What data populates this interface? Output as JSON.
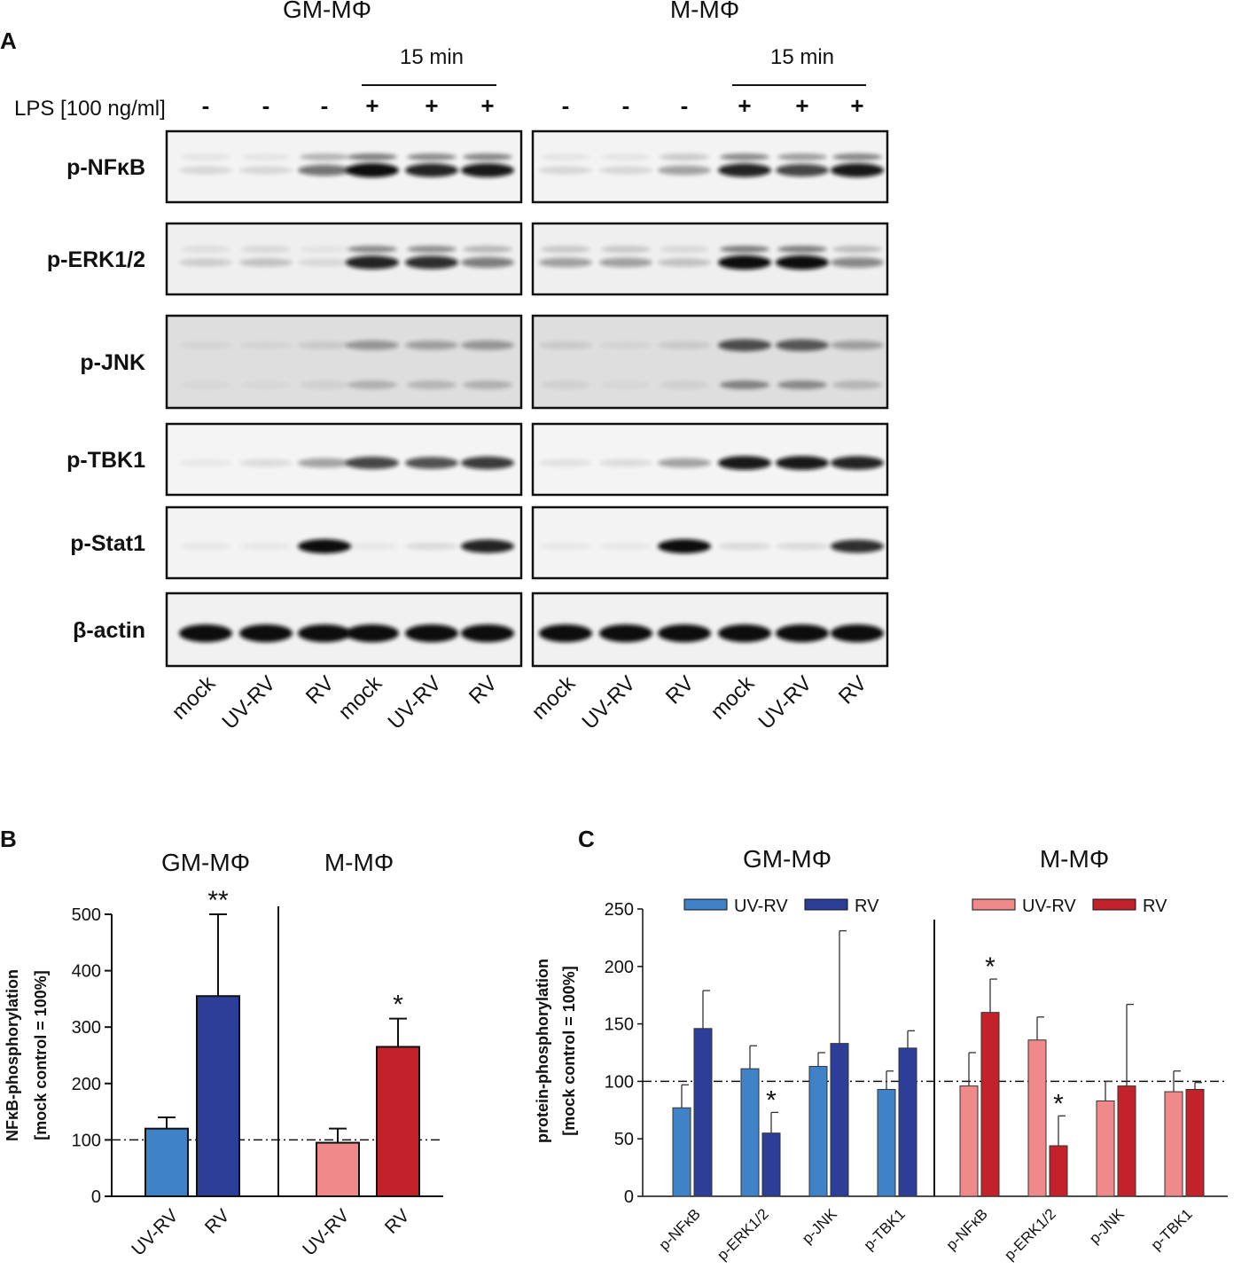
{
  "panel_a": {
    "letter": "A",
    "group_titles": [
      "GM-MΦ",
      "M-MΦ"
    ],
    "time_label": "15 min",
    "lps_label": "LPS [100 ng/ml]",
    "lps_signs": [
      "-",
      "-",
      "-",
      "+",
      "+",
      "+"
    ],
    "rows": [
      "p-NFκB",
      "p-ERK1/2",
      "p-JNK",
      "p-TBK1",
      "p-Stat1",
      "β-actin"
    ],
    "lanes": [
      "mock",
      "UV-RV",
      "RV",
      "mock",
      "UV-RV",
      "RV"
    ]
  },
  "panel_b": {
    "letter": "B",
    "group_titles": [
      "GM-MΦ",
      "M-MΦ"
    ],
    "ylabel_line1": "NFκB-phosphorylation",
    "ylabel_line2": "[mock control = 100%]",
    "yticks": [
      "500",
      "400",
      "300",
      "200",
      "100",
      "0"
    ],
    "xlabels": [
      "UV-RV",
      "RV",
      "UV-RV",
      "RV"
    ],
    "sig": [
      "",
      "**",
      "",
      "*"
    ]
  },
  "panel_c": {
    "letter": "C",
    "group_titles": [
      "GM-MΦ",
      "M-MΦ"
    ],
    "ylabel_line1": "protein-phosphorylation",
    "ylabel_line2": "[mock control = 100%]",
    "yticks": [
      "250",
      "200",
      "150",
      "100",
      "50",
      "0"
    ],
    "legend_gm": [
      "UV-RV",
      "RV"
    ],
    "legend_m": [
      "UV-RV",
      "RV"
    ],
    "xlabels": [
      "p-NFκB",
      "p-ERK1/2",
      "p-JNK",
      "p-TBK1",
      "p-NFκB",
      "p-ERK1/2",
      "p-JNK",
      "p-TBK1"
    ]
  },
  "colors": {
    "gm_uvrv": "#3f82c8",
    "gm_rv": "#2c3e98",
    "m_uvrv": "#f08a8a",
    "m_rv": "#c4222a"
  },
  "chart_data": [
    {
      "type": "bar",
      "panel": "B",
      "categories": [
        "UV-RV",
        "RV",
        "UV-RV",
        "RV"
      ],
      "groups": [
        "GM-MΦ",
        "GM-MΦ",
        "M-MΦ",
        "M-MΦ"
      ],
      "values": [
        120,
        355,
        95,
        265
      ],
      "errors": [
        20,
        145,
        25,
        50
      ],
      "significance": [
        "",
        "**",
        "",
        "*"
      ],
      "reference_line": 100,
      "ylim": [
        0,
        500
      ],
      "ylabel": "NFκB-phosphorylation [mock control = 100%]"
    },
    {
      "type": "bar",
      "panel": "C",
      "categories": [
        "p-NFκB",
        "p-ERK1/2",
        "p-JNK",
        "p-TBK1"
      ],
      "reference_line": 100,
      "ylim": [
        0,
        250
      ],
      "ylabel": "protein-phosphorylation [mock control = 100%]",
      "series": [
        {
          "group": "GM-MΦ",
          "name": "UV-RV",
          "values": [
            77,
            111,
            113,
            93
          ],
          "errors": [
            20,
            20,
            12,
            16
          ],
          "significance": [
            "",
            "",
            "",
            ""
          ]
        },
        {
          "group": "GM-MΦ",
          "name": "RV",
          "values": [
            146,
            55,
            133,
            129
          ],
          "errors": [
            33,
            18,
            98,
            15
          ],
          "significance": [
            "",
            "*",
            "",
            ""
          ]
        },
        {
          "group": "M-MΦ",
          "name": "UV-RV",
          "values": [
            96,
            136,
            83,
            91
          ],
          "errors": [
            29,
            20,
            17,
            18
          ],
          "significance": [
            "",
            "",
            "",
            ""
          ]
        },
        {
          "group": "M-MΦ",
          "name": "RV",
          "values": [
            160,
            44,
            96,
            93
          ],
          "errors": [
            29,
            26,
            71,
            6
          ],
          "significance": [
            "*",
            "*",
            "",
            ""
          ]
        }
      ]
    }
  ]
}
